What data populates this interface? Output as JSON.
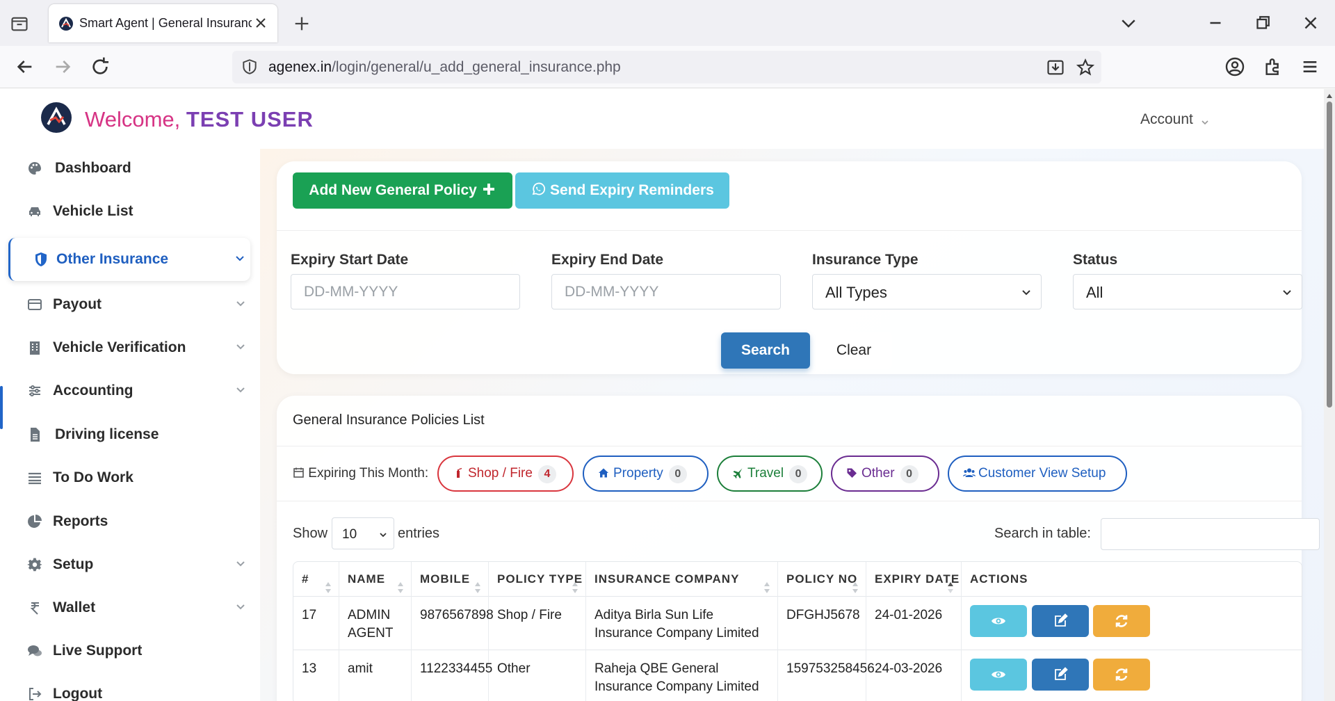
{
  "browser": {
    "tab_title": "Smart Agent | General Insurance",
    "url_host": "agenex.in",
    "url_path": "/login/general/u_add_general_insurance.php"
  },
  "header": {
    "welcome_prefix": "Welcome,",
    "user_name": "TEST USER",
    "account_label": "Account"
  },
  "sidebar": {
    "items": [
      {
        "label": "Dashboard",
        "icon": "palette-icon"
      },
      {
        "label": "Vehicle List",
        "icon": "car-icon"
      },
      {
        "label": "Other Insurance",
        "icon": "shield-icon",
        "active": true
      },
      {
        "label": "Payout",
        "icon": "credit-card-icon"
      },
      {
        "label": "Vehicle Verification",
        "icon": "building-icon"
      },
      {
        "label": "Accounting",
        "icon": "sliders-icon"
      },
      {
        "label": "Driving license",
        "icon": "file-icon"
      },
      {
        "label": "To Do Work",
        "icon": "list-icon"
      },
      {
        "label": "Reports",
        "icon": "pie-chart-icon"
      },
      {
        "label": "Setup",
        "icon": "gear-icon"
      },
      {
        "label": "Wallet",
        "icon": "rupee-icon"
      },
      {
        "label": "Live Support",
        "icon": "chat-icon"
      },
      {
        "label": "Logout",
        "icon": "logout-icon"
      }
    ]
  },
  "actions": {
    "add_policy": "Add New General Policy",
    "send_reminders": "Send Expiry Reminders"
  },
  "filters": {
    "expiry_start_label": "Expiry Start Date",
    "expiry_start_placeholder": "DD-MM-YYYY",
    "expiry_end_label": "Expiry End Date",
    "expiry_end_placeholder": "DD-MM-YYYY",
    "insurance_type_label": "Insurance Type",
    "insurance_type_value": "All Types",
    "status_label": "Status",
    "status_value": "All",
    "search_button": "Search",
    "clear_button": "Clear"
  },
  "list": {
    "title": "General Insurance Policies List",
    "expiring_label": "Expiring This Month:",
    "pills": [
      {
        "label": "Shop / Fire",
        "count": "4"
      },
      {
        "label": "Property",
        "count": "0"
      },
      {
        "label": "Travel",
        "count": "0"
      },
      {
        "label": "Other",
        "count": "0"
      },
      {
        "label": "Customer View Setup"
      }
    ],
    "show_label": "Show",
    "entries_value": "10",
    "entries_label": "entries",
    "search_label": "Search in table:",
    "columns": [
      "#",
      "NAME",
      "MOBILE",
      "POLICY TYPE",
      "INSURANCE COMPANY",
      "POLICY NO",
      "EXPIRY DATE",
      "ACTIONS"
    ],
    "rows": [
      {
        "id": "17",
        "name": "ADMIN AGENT",
        "mobile": "9876567898",
        "policy_type": "Shop / Fire",
        "company": "Aditya Birla Sun Life Insurance Company Limited",
        "policy_no": "DFGHJ5678",
        "expiry": "24-01-2026"
      },
      {
        "id": "13",
        "name": "amit",
        "mobile": "1122334455",
        "policy_type": "Other",
        "company": "Raheja QBE General Insurance Company Limited",
        "policy_no": "159753258456",
        "expiry": "24-03-2026"
      }
    ]
  },
  "colors": {
    "primary": "#2165c8",
    "success": "#1aa154",
    "info": "#5bc6e0",
    "warning": "#f0ac3c",
    "danger": "#d9363e"
  }
}
